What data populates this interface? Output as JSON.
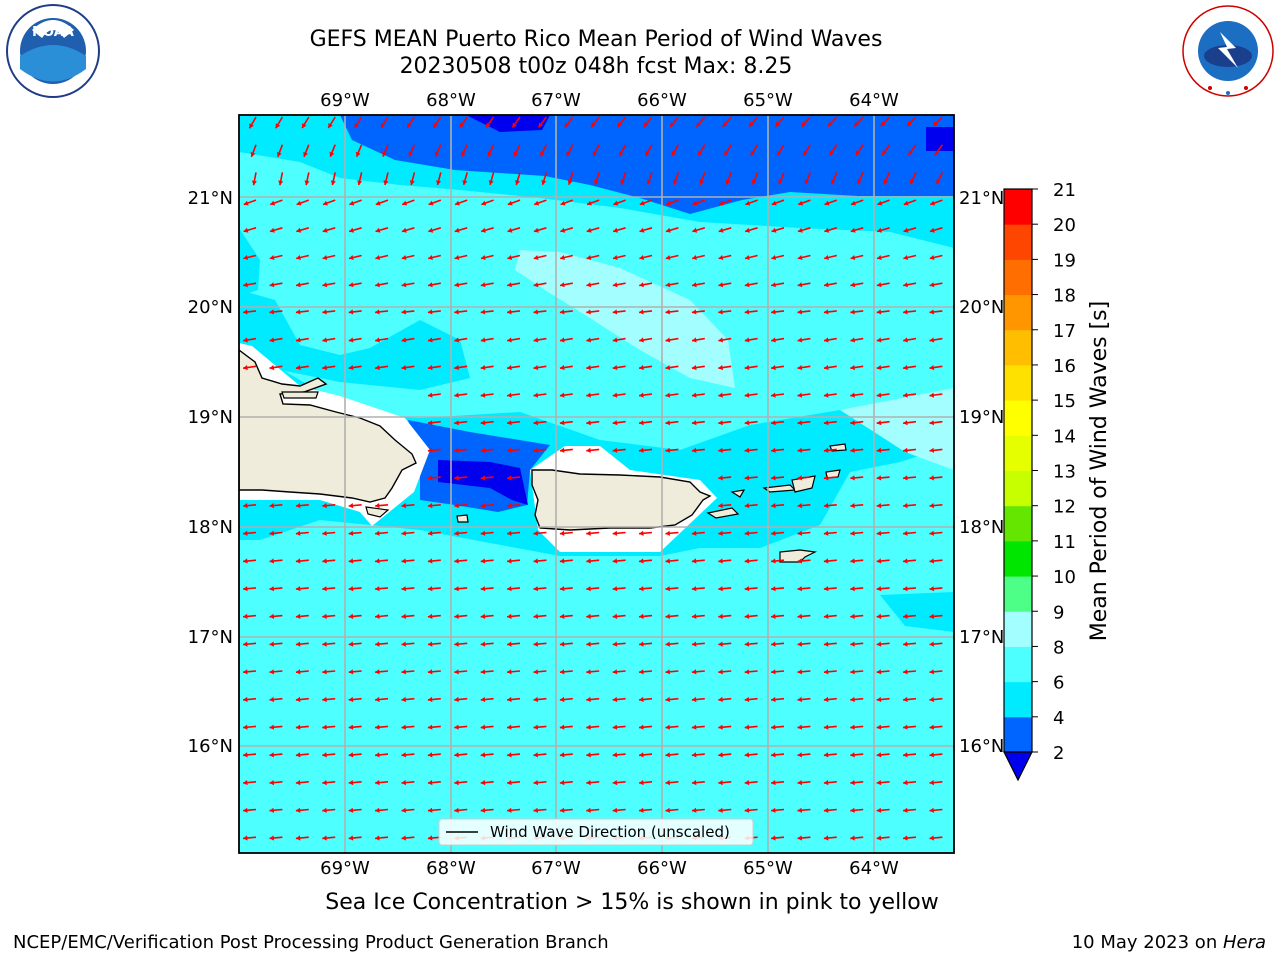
{
  "header": {
    "title_line1": "GEFS MEAN Puerto Rico Mean Period of Wind Waves",
    "title_line2": "20230508 t00z 048h fcst   Max: 8.25"
  },
  "map": {
    "lon_labels": [
      "69°W",
      "68°W",
      "67°W",
      "66°W",
      "65°W",
      "64°W"
    ],
    "lat_labels": [
      "21°N",
      "20°N",
      "19°N",
      "18°N",
      "17°N",
      "16°N"
    ],
    "legend_label": "Wind Wave Direction (unscaled)",
    "land_color": "#efecdc",
    "arrow_color": "#ff0000",
    "grid_color": "#b0b0b0"
  },
  "colorbar": {
    "label": "Mean Period of Wind Waves [s]",
    "ticks": [
      "2",
      "4",
      "6",
      "8",
      "9",
      "10",
      "11",
      "12",
      "13",
      "14",
      "15",
      "16",
      "17",
      "18",
      "19",
      "20",
      "21"
    ],
    "colors": [
      "#0064ff",
      "#00ebff",
      "#4dffff",
      "#a3ffff",
      "#4dff87",
      "#00e600",
      "#64e600",
      "#c8ff00",
      "#e6ff00",
      "#ffff00",
      "#ffe100",
      "#ffbe00",
      "#ff9600",
      "#ff6e00",
      "#ff4600",
      "#ff0000"
    ],
    "under_color": "#0000ee"
  },
  "footer": {
    "note": "Sea Ice Concentration > 15% is shown in pink to yellow",
    "left": "NCEP/EMC/Verification Post Processing Product Generation Branch",
    "right_prefix": "10 May 2023 on ",
    "right_machine": "Hera"
  }
}
